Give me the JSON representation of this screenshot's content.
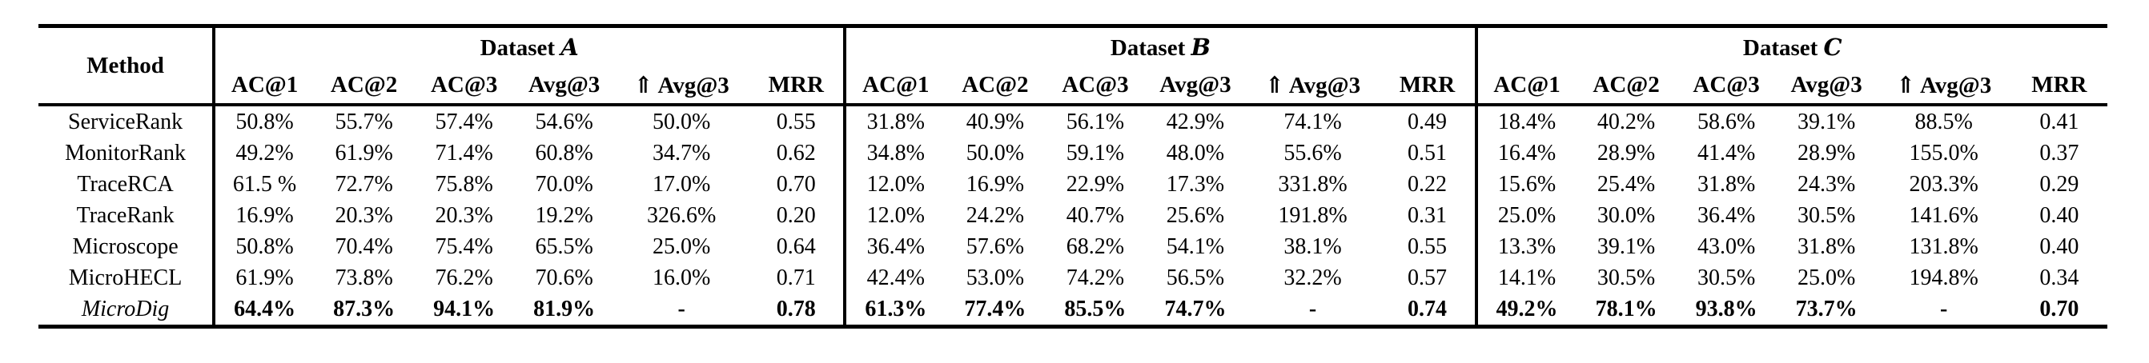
{
  "table": {
    "method_header": "Method",
    "groups": [
      {
        "title": "Dataset",
        "letter": "A",
        "columns": [
          "AC@1",
          "AC@2",
          "AC@3",
          "Avg@3",
          "⇑ Avg@3",
          "MRR"
        ]
      },
      {
        "title": "Dataset",
        "letter": "B",
        "columns": [
          "AC@1",
          "AC@2",
          "AC@3",
          "Avg@3",
          "⇑ Avg@3",
          "MRR"
        ]
      },
      {
        "title": "Dataset",
        "letter": "C",
        "columns": [
          "AC@1",
          "AC@2",
          "AC@3",
          "Avg@3",
          "⇑ Avg@3",
          "MRR"
        ]
      }
    ],
    "rows": [
      {
        "method": "ServiceRank",
        "italic": false,
        "bold": false,
        "values": {
          "a": [
            "50.8%",
            "55.7%",
            "57.4%",
            "54.6%",
            "50.0%",
            "0.55"
          ],
          "b": [
            "31.8%",
            "40.9%",
            "56.1%",
            "42.9%",
            "74.1%",
            "0.49"
          ],
          "c": [
            "18.4%",
            "40.2%",
            "58.6%",
            "39.1%",
            "88.5%",
            "0.41"
          ]
        }
      },
      {
        "method": "MonitorRank",
        "italic": false,
        "bold": false,
        "values": {
          "a": [
            "49.2%",
            "61.9%",
            "71.4%",
            "60.8%",
            "34.7%",
            "0.62"
          ],
          "b": [
            "34.8%",
            "50.0%",
            "59.1%",
            "48.0%",
            "55.6%",
            "0.51"
          ],
          "c": [
            "16.4%",
            "28.9%",
            "41.4%",
            "28.9%",
            "155.0%",
            "0.37"
          ]
        }
      },
      {
        "method": "TraceRCA",
        "italic": false,
        "bold": false,
        "values": {
          "a": [
            "61.5 %",
            "72.7%",
            "75.8%",
            "70.0%",
            "17.0%",
            "0.70"
          ],
          "b": [
            "12.0%",
            "16.9%",
            "22.9%",
            "17.3%",
            "331.8%",
            "0.22"
          ],
          "c": [
            "15.6%",
            "25.4%",
            "31.8%",
            "24.3%",
            "203.3%",
            "0.29"
          ]
        }
      },
      {
        "method": "TraceRank",
        "italic": false,
        "bold": false,
        "values": {
          "a": [
            "16.9%",
            "20.3%",
            "20.3%",
            "19.2%",
            "326.6%",
            "0.20"
          ],
          "b": [
            "12.0%",
            "24.2%",
            "40.7%",
            "25.6%",
            "191.8%",
            "0.31"
          ],
          "c": [
            "25.0%",
            "30.0%",
            "36.4%",
            "30.5%",
            "141.6%",
            "0.40"
          ]
        }
      },
      {
        "method": "Microscope",
        "italic": false,
        "bold": false,
        "values": {
          "a": [
            "50.8%",
            "70.4%",
            "75.4%",
            "65.5%",
            "25.0%",
            "0.64"
          ],
          "b": [
            "36.4%",
            "57.6%",
            "68.2%",
            "54.1%",
            "38.1%",
            "0.55"
          ],
          "c": [
            "13.3%",
            "39.1%",
            "43.0%",
            "31.8%",
            "131.8%",
            "0.40"
          ]
        }
      },
      {
        "method": "MicroHECL",
        "italic": false,
        "bold": false,
        "values": {
          "a": [
            "61.9%",
            "73.8%",
            "76.2%",
            "70.6%",
            "16.0%",
            "0.71"
          ],
          "b": [
            "42.4%",
            "53.0%",
            "74.2%",
            "56.5%",
            "32.2%",
            "0.57"
          ],
          "c": [
            "14.1%",
            "30.5%",
            "30.5%",
            "25.0%",
            "194.8%",
            "0.34"
          ]
        }
      },
      {
        "method": "MicroDig",
        "italic": true,
        "bold": true,
        "values": {
          "a": [
            "64.4%",
            "87.3%",
            "94.1%",
            "81.9%",
            "-",
            "0.78"
          ],
          "b": [
            "61.3%",
            "77.4%",
            "85.5%",
            "74.7%",
            "-",
            "0.74"
          ],
          "c": [
            "49.2%",
            "78.1%",
            "93.8%",
            "73.7%",
            "-",
            "0.70"
          ]
        }
      }
    ]
  }
}
